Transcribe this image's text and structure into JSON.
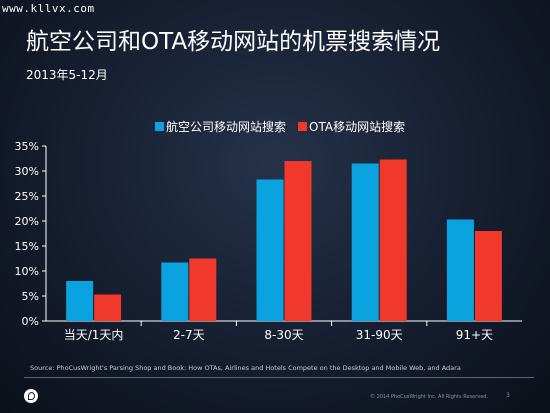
{
  "watermark": "www.kllvx.com",
  "header": {
    "title": "航空公司和OTA移动网站的机票搜索情况",
    "subtitle": "2013年5-12月"
  },
  "colors": {
    "series1": "#0aa3e0",
    "series2": "#f0392b",
    "axis": "#ffffff"
  },
  "chart_data": {
    "type": "bar",
    "categories": [
      "当天/1天内",
      "2-7天",
      "8-30天",
      "31-90天",
      "91+天"
    ],
    "series": [
      {
        "name": "航空公司移动网站搜索",
        "values": [
          8,
          11.7,
          28.3,
          31.5,
          20.3
        ]
      },
      {
        "name": "OTA移动网站搜索",
        "values": [
          5.3,
          12.5,
          32,
          32.3,
          18
        ]
      }
    ],
    "yticks": [
      "0%",
      "5%",
      "10%",
      "15%",
      "20%",
      "25%",
      "30%",
      "35%"
    ],
    "ylim": [
      0,
      35
    ],
    "grid": false,
    "legend_position": "top"
  },
  "footer": {
    "source": "Source: PhoCusWright's Parsing Shop and Book: How OTAs, Airlines and Hotels Compete on the Desktop and Mobile Web, and Adara",
    "copyright": "© 2014 PhoCusWright Inc. All Rights Reserved.",
    "page_number": "3"
  }
}
